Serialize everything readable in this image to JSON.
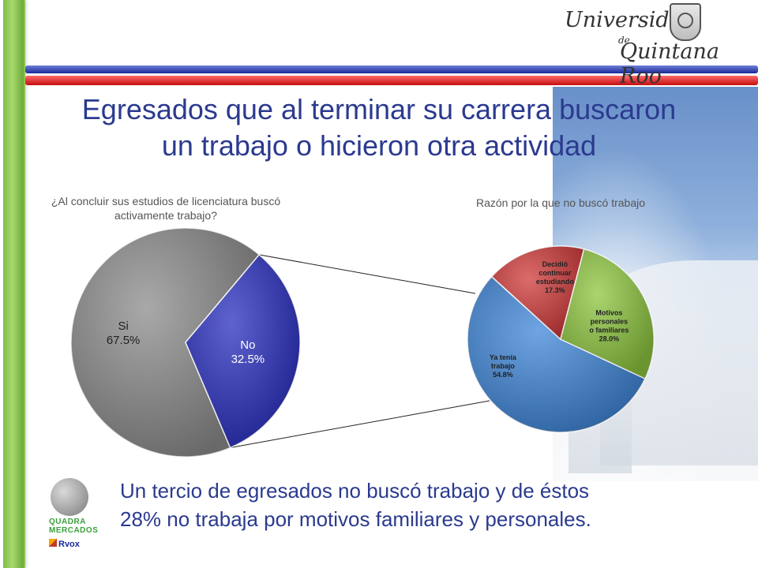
{
  "header": {
    "logo_line1": "Universidad",
    "logo_line2": "de",
    "logo_line3": "Quintana Roo"
  },
  "title_line1": "Egresados que al terminar su carrera buscaron",
  "title_line2": "un trabajo o hicieron otra actividad",
  "footer": {
    "line1": "Un tercio de egresados no buscó trabajo y de éstos",
    "line2": "28% no trabaja por motivos familiares y personales."
  },
  "sponsor": {
    "name_line1": "QUADRA",
    "name_line2": "MERCADOS",
    "sub": "Rvox"
  },
  "colors": {
    "title": "#2b3a8f",
    "si": "#8c8c8c",
    "no": "#2a2fbf",
    "ya_tenia": "#3f86d8",
    "decidio": "#d03a3a",
    "motivos": "#8dc63f"
  },
  "chart_data": [
    {
      "type": "pie",
      "title": "¿Al concluir sus estudios de licenciatura buscó activamente trabajo?",
      "slices": [
        {
          "label": "Si",
          "value": 67.5,
          "display": "67.5%"
        },
        {
          "label": "No",
          "value": 32.5,
          "display": "32.5%"
        }
      ]
    },
    {
      "type": "pie",
      "title": "Razón por la que no buscó trabajo",
      "slices": [
        {
          "label": "Ya tenía trabajo",
          "value": 54.8,
          "display": "54.8%"
        },
        {
          "label": "Decidió continuar estudiando",
          "value": 17.3,
          "display": "17.3%"
        },
        {
          "label": "Motivos personales o familiares",
          "value": 28.0,
          "display": "28.0%"
        }
      ]
    }
  ]
}
